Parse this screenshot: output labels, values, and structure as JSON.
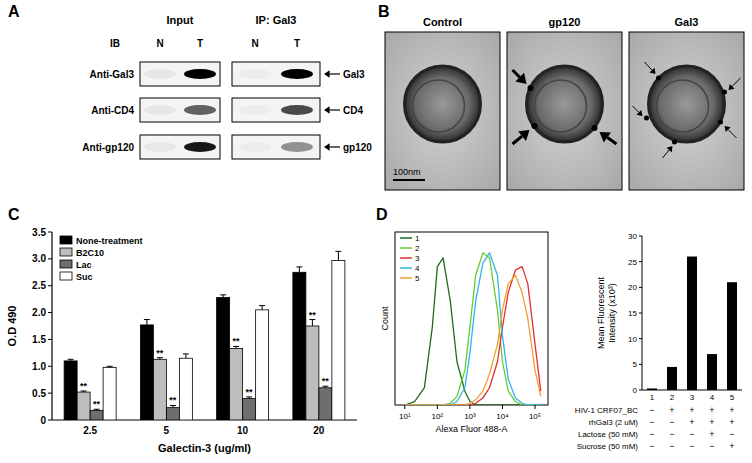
{
  "panel_labels": [
    "A",
    "B",
    "C",
    "D"
  ],
  "panel_a": {
    "headers": [
      "Input",
      "IP: Gal3"
    ],
    "ib": "IB",
    "lanes": [
      "N",
      "T",
      "N",
      "T"
    ],
    "rows": [
      {
        "antibody": "Anti-Gal3",
        "target": "Gal3",
        "bands": [
          0.05,
          1,
          0.03,
          1
        ]
      },
      {
        "antibody": "Anti-CD4",
        "target": "CD4",
        "bands": [
          0.05,
          0.6,
          0.03,
          0.7
        ]
      },
      {
        "antibody": "Anti-gp120",
        "target": "gp120",
        "bands": [
          0.05,
          0.9,
          0.03,
          0.4
        ]
      }
    ]
  },
  "panel_b": {
    "images": [
      {
        "title": "Control"
      },
      {
        "title": "gp120"
      },
      {
        "title": "Gal3"
      }
    ],
    "scale_bar": "100nm"
  },
  "chart_data": [
    {
      "type": "bar",
      "categories": [
        "2.5",
        "5",
        "10",
        "20"
      ],
      "x_label": "Galectin-3 (ug/ml)",
      "y_label": "O.D 490",
      "ylim": [
        0,
        3.5
      ],
      "yticks": [
        0,
        0.5,
        {
          "value": 1,
          "label": "1.0"
        },
        1.5,
        {
          "value": 2,
          "label": "2.0"
        },
        2.5,
        {
          "value": 3,
          "label": "3.0"
        },
        3.5
      ],
      "grid": false,
      "legend": "upper left",
      "series": [
        {
          "name": "None-treatment",
          "color": "#000000",
          "values": [
            1.1,
            1.77,
            2.28,
            2.75
          ],
          "errors": [
            0.03,
            0.1,
            0.05,
            0.1
          ],
          "annotations": [
            null,
            null,
            null,
            null
          ]
        },
        {
          "name": "B2C10",
          "color": "#bdbdbd",
          "values": [
            0.52,
            1.13,
            1.33,
            1.75
          ],
          "errors": [
            0.02,
            0.03,
            0.04,
            0.12
          ],
          "annotations": [
            "**",
            "**",
            "**",
            "**"
          ]
        },
        {
          "name": "Lac",
          "color": "#6e6e6e",
          "values": [
            0.18,
            0.23,
            0.4,
            0.6
          ],
          "errors": [
            0.02,
            0.04,
            0.03,
            0.03
          ],
          "annotations": [
            "**",
            "**",
            "**",
            "**"
          ]
        },
        {
          "name": "Suc",
          "color": "#ffffff",
          "values": [
            0.98,
            1.15,
            2.05,
            2.97
          ],
          "errors": [
            0.02,
            0.08,
            0.08,
            0.17
          ],
          "annotations": [
            null,
            null,
            null,
            null
          ]
        }
      ]
    },
    {
      "type": "line",
      "x_label": "Alexa Fluor 488-A",
      "y_label": "Count",
      "log": "x",
      "xlim": [
        5,
        250000
      ],
      "xticks": [
        {
          "value": 10,
          "label": "10¹"
        },
        {
          "value": 100,
          "label": "10²"
        },
        {
          "value": 1000,
          "label": "10³"
        },
        {
          "value": 10000,
          "label": "10⁴"
        },
        {
          "value": 100000,
          "label": "10⁵"
        }
      ],
      "ylim": [
        0,
        100
      ],
      "tick_labels": "x",
      "grid": false,
      "legend": "upper left",
      "x": [
        10,
        20,
        40,
        70,
        100,
        150,
        250,
        400,
        700,
        1000,
        1500,
        2500,
        4000,
        7000,
        10000,
        15000,
        25000,
        40000,
        60000,
        100000,
        150000
      ],
      "series": [
        {
          "name": "1",
          "color": "#1f6b1f",
          "values": [
            0,
            2,
            10,
            45,
            80,
            85,
            60,
            25,
            8,
            2,
            0,
            0,
            0,
            0,
            0,
            0,
            0,
            0,
            0,
            0,
            0
          ]
        },
        {
          "name": "2",
          "color": "#66cc33",
          "values": [
            0,
            0,
            0,
            0,
            0,
            0,
            1,
            5,
            20,
            45,
            75,
            88,
            85,
            55,
            25,
            8,
            2,
            0,
            0,
            0,
            0
          ]
        },
        {
          "name": "3",
          "color": "#e03030",
          "values": [
            0,
            0,
            0,
            0,
            0,
            0,
            0,
            0,
            0,
            0,
            1,
            4,
            10,
            25,
            45,
            65,
            78,
            80,
            70,
            35,
            8
          ]
        },
        {
          "name": "4",
          "color": "#33b5e5",
          "values": [
            0,
            0,
            0,
            0,
            0,
            0,
            0,
            2,
            10,
            30,
            60,
            82,
            88,
            75,
            40,
            15,
            4,
            1,
            0,
            0,
            0
          ]
        },
        {
          "name": "5",
          "color": "#f0a030",
          "values": [
            0,
            0,
            0,
            0,
            0,
            0,
            0,
            0,
            0,
            1,
            3,
            8,
            18,
            35,
            55,
            70,
            75,
            65,
            50,
            20,
            5
          ]
        }
      ]
    },
    {
      "type": "bar",
      "categories": [
        "1",
        "2",
        "3",
        "4",
        "5"
      ],
      "values": [
        0.3,
        4.5,
        26,
        7,
        21
      ],
      "color": "#000000",
      "y_label": [
        "Mean Fluorescent",
        "Intensity (x10³)"
      ],
      "ylim": [
        0,
        30
      ],
      "yticks": [
        0,
        5,
        10,
        15,
        20,
        25,
        30
      ],
      "grid": false,
      "conditions": [
        {
          "label": "HIV-1 CRF07_BC",
          "signs": [
            "−",
            "+",
            "+",
            "+",
            "+"
          ]
        },
        {
          "label": "rhGal3 (2 uM)",
          "signs": [
            "−",
            "−",
            "+",
            "+",
            "+"
          ]
        },
        {
          "label": "Lactose (50 mM)",
          "signs": [
            "−",
            "−",
            "−",
            "+",
            "−"
          ]
        },
        {
          "label": "Sucrose (50 mM)",
          "signs": [
            "−",
            "−",
            "−",
            "−",
            "+"
          ]
        }
      ]
    }
  ]
}
